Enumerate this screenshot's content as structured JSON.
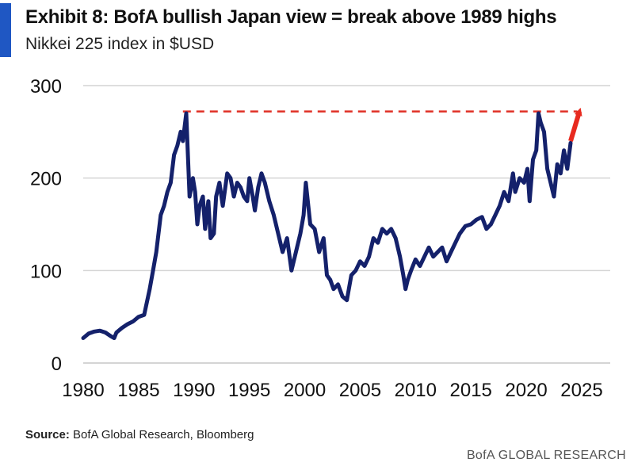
{
  "header": {
    "title": "Exhibit 8: BofA bullish Japan view = break above 1989 highs",
    "subtitle": "Nikkei 225 index in $USD"
  },
  "footer": {
    "source_label": "Source:",
    "source_text": "BofA Global Research, Bloomberg",
    "brand": "BofA GLOBAL RESEARCH"
  },
  "colors": {
    "line": "#14216b",
    "threshold": "#e03026",
    "arrow": "#e82a1f",
    "grid": "#d4d4d4",
    "accent": "#1f57c3"
  },
  "chart_data": {
    "type": "line",
    "title": "Nikkei 225 index in $USD",
    "xlabel": "",
    "ylabel": "",
    "xlim": [
      1980,
      2025
    ],
    "ylim": [
      0,
      300
    ],
    "xticks": [
      1980,
      1985,
      1990,
      1995,
      2000,
      2005,
      2010,
      2015,
      2020,
      2025
    ],
    "yticks": [
      0,
      100,
      200,
      300
    ],
    "grid": true,
    "reference_line": {
      "name": "1989 high",
      "y": 272,
      "x_from": 1989.0,
      "x_to": 2024.6,
      "style": "dashed"
    },
    "arrow": {
      "from": [
        2024.0,
        240
      ],
      "to": [
        2024.8,
        272
      ]
    },
    "series": [
      {
        "name": "Nikkei 225 in USD",
        "x": [
          1980.0,
          1980.5,
          1981.0,
          1981.5,
          1982.0,
          1982.5,
          1982.8,
          1983.0,
          1983.5,
          1984.0,
          1984.5,
          1985.0,
          1985.5,
          1986.0,
          1986.3,
          1986.6,
          1987.0,
          1987.3,
          1987.6,
          1987.9,
          1988.2,
          1988.5,
          1988.8,
          1989.0,
          1989.3,
          1989.6,
          1989.9,
          1990.1,
          1990.3,
          1990.5,
          1990.8,
          1991.0,
          1991.3,
          1991.5,
          1991.8,
          1992.0,
          1992.3,
          1992.6,
          1993.0,
          1993.3,
          1993.6,
          1993.9,
          1994.2,
          1994.5,
          1994.8,
          1995.0,
          1995.3,
          1995.5,
          1995.8,
          1996.1,
          1996.4,
          1996.8,
          1997.2,
          1997.6,
          1998.0,
          1998.4,
          1998.8,
          1999.2,
          1999.6,
          1999.9,
          2000.1,
          2000.5,
          2000.9,
          2001.3,
          2001.7,
          2002.0,
          2002.3,
          2002.6,
          2003.0,
          2003.4,
          2003.8,
          2004.2,
          2004.6,
          2005.0,
          2005.4,
          2005.8,
          2006.2,
          2006.6,
          2007.0,
          2007.4,
          2007.8,
          2008.2,
          2008.6,
          2008.9,
          2009.1,
          2009.3,
          2009.6,
          2010.0,
          2010.4,
          2010.8,
          2011.2,
          2011.6,
          2012.0,
          2012.4,
          2012.8,
          2013.2,
          2013.6,
          2014.0,
          2014.5,
          2015.0,
          2015.5,
          2016.0,
          2016.4,
          2016.8,
          2017.2,
          2017.6,
          2018.0,
          2018.4,
          2018.8,
          2019.0,
          2019.4,
          2019.8,
          2020.1,
          2020.3,
          2020.6,
          2020.9,
          2021.1,
          2021.3,
          2021.6,
          2021.9,
          2022.2,
          2022.5,
          2022.8,
          2023.1,
          2023.4,
          2023.7,
          2024.0
        ],
        "y": [
          27,
          32,
          34,
          35,
          33,
          29,
          27,
          33,
          38,
          42,
          45,
          50,
          52,
          80,
          100,
          120,
          160,
          170,
          185,
          195,
          225,
          235,
          250,
          240,
          270,
          180,
          200,
          185,
          150,
          170,
          180,
          145,
          175,
          135,
          140,
          180,
          195,
          170,
          205,
          200,
          180,
          195,
          190,
          180,
          175,
          200,
          180,
          165,
          190,
          205,
          195,
          175,
          160,
          140,
          120,
          135,
          100,
          120,
          140,
          160,
          195,
          150,
          145,
          120,
          135,
          95,
          90,
          80,
          85,
          72,
          68,
          95,
          100,
          110,
          105,
          115,
          135,
          130,
          145,
          140,
          145,
          135,
          115,
          95,
          80,
          90,
          100,
          112,
          105,
          115,
          125,
          115,
          120,
          125,
          110,
          120,
          130,
          140,
          148,
          150,
          155,
          158,
          145,
          150,
          160,
          170,
          185,
          175,
          205,
          185,
          200,
          195,
          210,
          175,
          220,
          230,
          270,
          260,
          250,
          210,
          195,
          180,
          215,
          205,
          230,
          210,
          238
        ]
      }
    ]
  }
}
